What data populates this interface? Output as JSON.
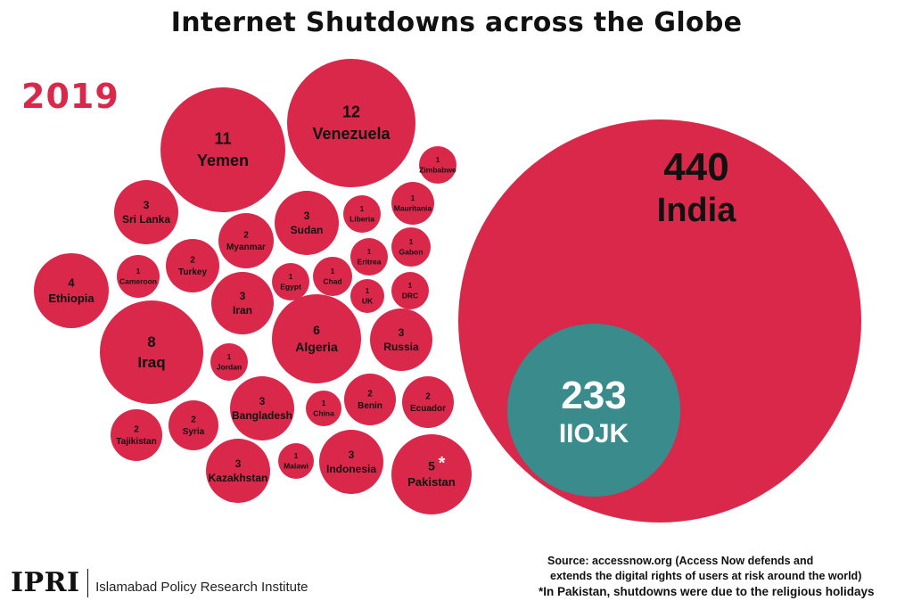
{
  "header": {
    "title": "Internet Shutdowns across the Globe",
    "year": "2019"
  },
  "chart_data": {
    "type": "bubble",
    "title": "Internet Shutdowns across the Globe",
    "subtitle": "2019",
    "colors": {
      "bubble": "#d9284a",
      "highlight": "#3a8b8b"
    },
    "items": [
      {
        "name": "India",
        "value": 440
      },
      {
        "name": "IIOJK",
        "value": 233
      },
      {
        "name": "Venezuela",
        "value": 12
      },
      {
        "name": "Yemen",
        "value": 11
      },
      {
        "name": "Iraq",
        "value": 8
      },
      {
        "name": "Algeria",
        "value": 6
      },
      {
        "name": "Pakistan",
        "value": 5,
        "marker": "*"
      },
      {
        "name": "Ethiopia",
        "value": 4
      },
      {
        "name": "Sri Lanka",
        "value": 3
      },
      {
        "name": "Sudan",
        "value": 3
      },
      {
        "name": "Iran",
        "value": 3
      },
      {
        "name": "Russia",
        "value": 3
      },
      {
        "name": "Bangladesh",
        "value": 3
      },
      {
        "name": "Kazakhstan",
        "value": 3
      },
      {
        "name": "Indonesia",
        "value": 3
      },
      {
        "name": "Myanmar",
        "value": 2
      },
      {
        "name": "Turkey",
        "value": 2
      },
      {
        "name": "Benin",
        "value": 2
      },
      {
        "name": "Ecuador",
        "value": 2
      },
      {
        "name": "Tajikistan",
        "value": 2
      },
      {
        "name": "Syria",
        "value": 2
      },
      {
        "name": "Zimbabwe",
        "value": 1
      },
      {
        "name": "Liberia",
        "value": 1
      },
      {
        "name": "Mauritania",
        "value": 1
      },
      {
        "name": "Eritrea",
        "value": 1
      },
      {
        "name": "Gabon",
        "value": 1
      },
      {
        "name": "Cameroon",
        "value": 1
      },
      {
        "name": "Egypt",
        "value": 1
      },
      {
        "name": "Chad",
        "value": 1
      },
      {
        "name": "UK",
        "value": 1
      },
      {
        "name": "DRC",
        "value": 1
      },
      {
        "name": "Jordan",
        "value": 1
      },
      {
        "name": "China",
        "value": 1
      },
      {
        "name": "Malawi",
        "value": 1
      }
    ]
  },
  "footer": {
    "source_line1": "Source: accessnow.org (Access Now defends and",
    "source_line2": "extends the digital rights of users at risk around the world)",
    "footnote": "*In Pakistan, shutdowns were due to the religious holidays",
    "logo_mark": "IPRI",
    "logo_text": "Islamabad Policy Research Institute"
  }
}
